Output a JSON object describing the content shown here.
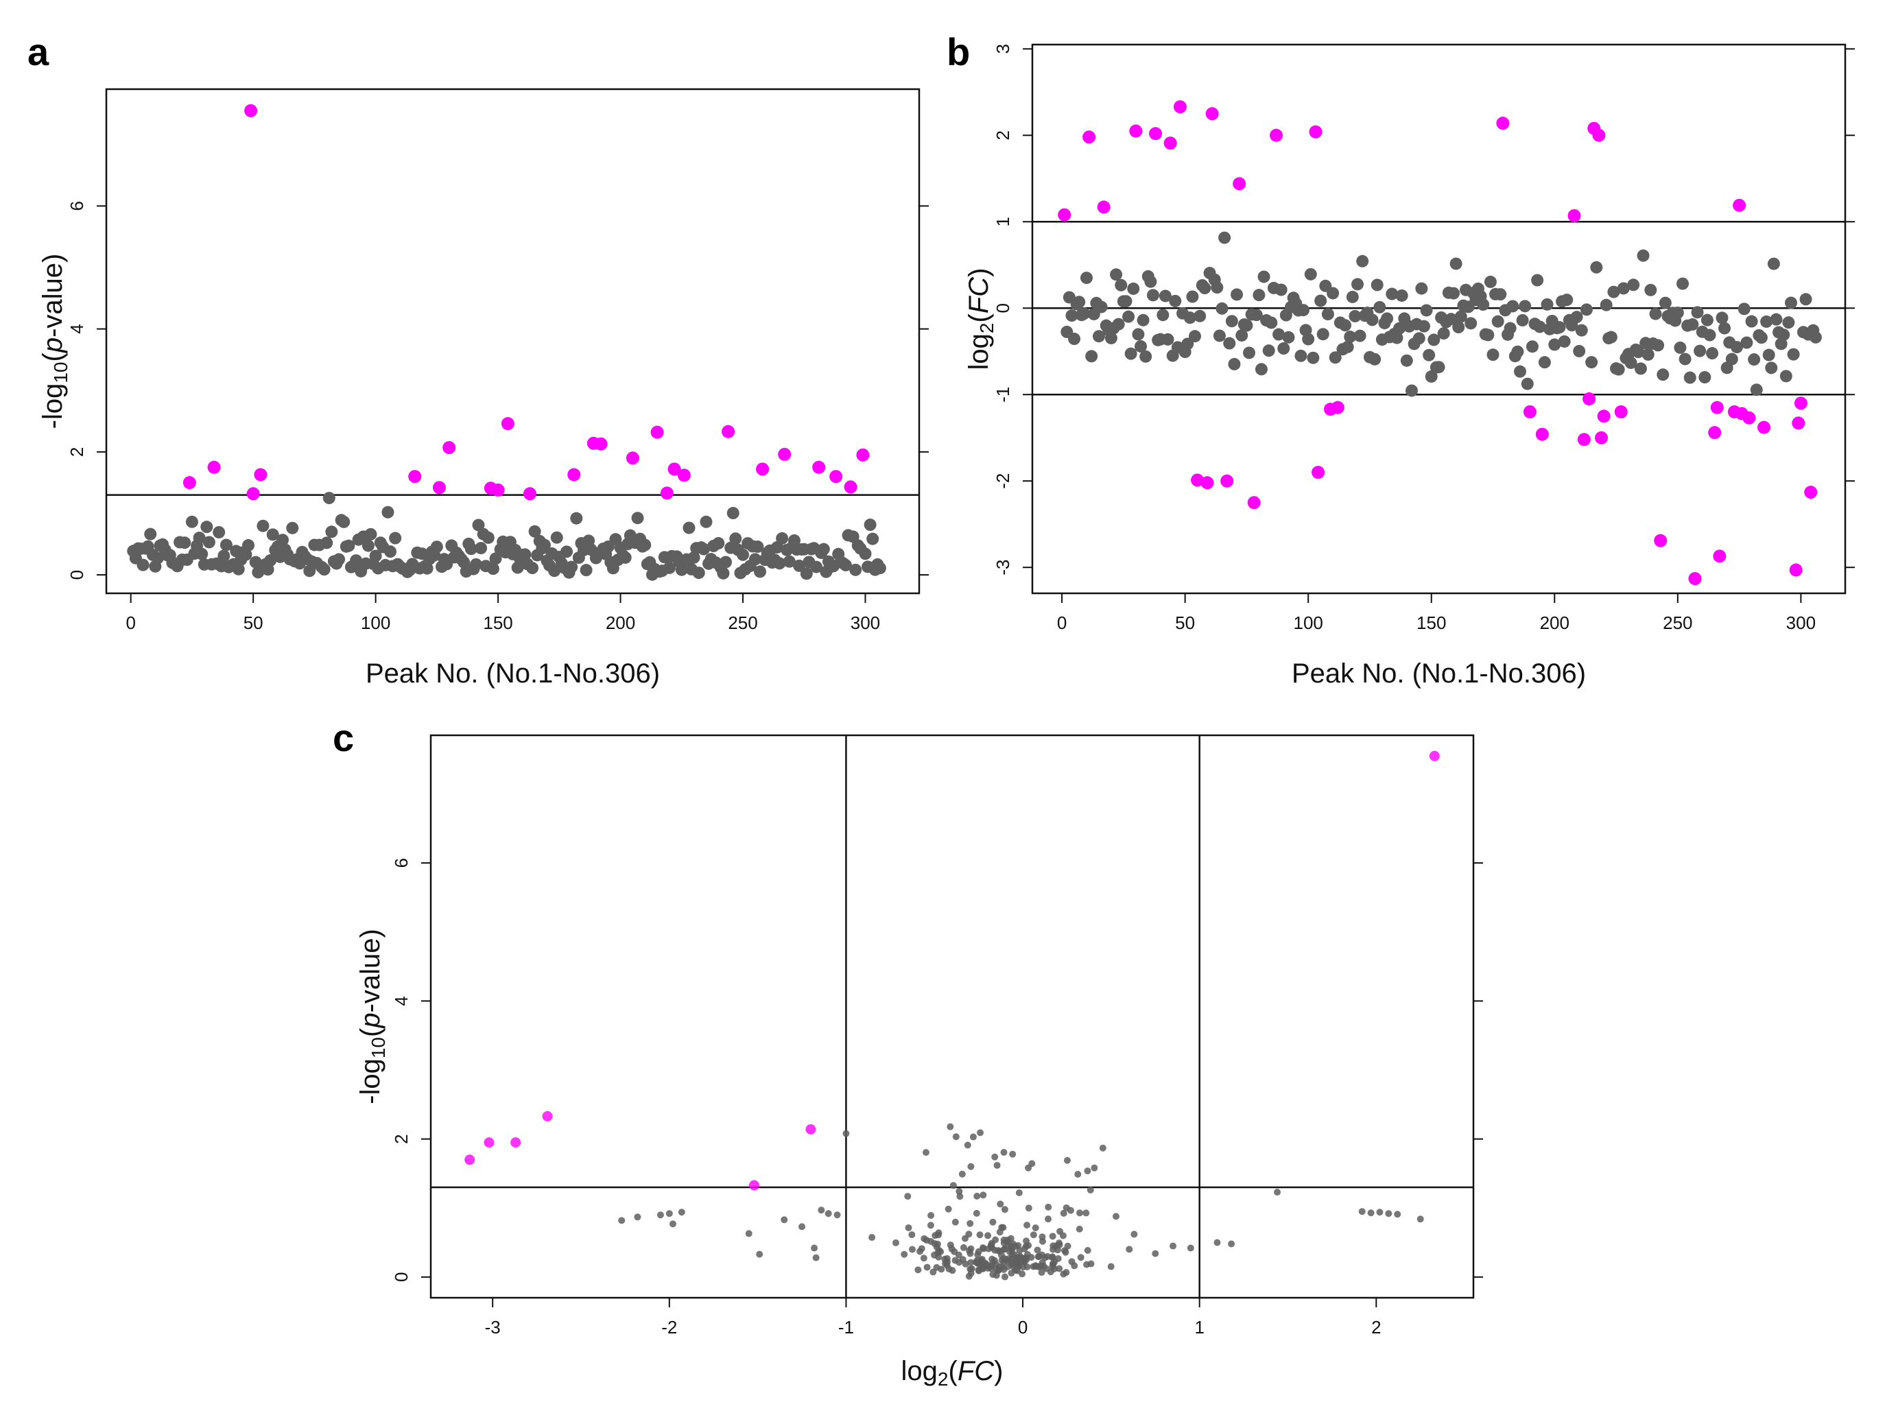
{
  "colors": {
    "significant": "#ff00ff",
    "nonsignificant": "#5f5f5f",
    "axis": "#111111"
  },
  "chart_data": [
    {
      "panel": "a",
      "type": "scatter",
      "xlabel": "Peak No. (No.1-No.306)",
      "ylabel": {
        "pre": "-log",
        "sub": "10",
        "open": "(",
        "italic": "p",
        "post": "-value)"
      },
      "xlim": [
        -10,
        322
      ],
      "ylim": [
        -0.3,
        7.9
      ],
      "xticks": [
        "0",
        "50",
        "100",
        "150",
        "200",
        "250",
        "300"
      ],
      "yticks": [
        "0",
        "2",
        "4",
        "6"
      ],
      "hline": [
        1.3
      ],
      "significant": [
        {
          "x": 24,
          "y": 1.5
        },
        {
          "x": 34,
          "y": 1.75
        },
        {
          "x": 49,
          "y": 7.55
        },
        {
          "x": 50,
          "y": 1.32
        },
        {
          "x": 53,
          "y": 1.63
        },
        {
          "x": 116,
          "y": 1.6
        },
        {
          "x": 126,
          "y": 1.42
        },
        {
          "x": 130,
          "y": 2.07
        },
        {
          "x": 147,
          "y": 1.41
        },
        {
          "x": 150,
          "y": 1.38
        },
        {
          "x": 154,
          "y": 2.46
        },
        {
          "x": 163,
          "y": 1.32
        },
        {
          "x": 181,
          "y": 1.63
        },
        {
          "x": 189,
          "y": 2.14
        },
        {
          "x": 192,
          "y": 2.13
        },
        {
          "x": 205,
          "y": 1.9
        },
        {
          "x": 215,
          "y": 2.32
        },
        {
          "x": 219,
          "y": 1.33
        },
        {
          "x": 222,
          "y": 1.72
        },
        {
          "x": 226,
          "y": 1.62
        },
        {
          "x": 244,
          "y": 2.33
        },
        {
          "x": 258,
          "y": 1.72
        },
        {
          "x": 267,
          "y": 1.96
        },
        {
          "x": 281,
          "y": 1.75
        },
        {
          "x": 288,
          "y": 1.6
        },
        {
          "x": 294,
          "y": 1.43
        },
        {
          "x": 299,
          "y": 1.95
        }
      ]
    },
    {
      "panel": "b",
      "type": "scatter",
      "xlabel": "Peak No. (No.1-No.306)",
      "ylabel": {
        "pre": "log",
        "sub": "2",
        "open": "(",
        "italic": "FC",
        "post": ")"
      },
      "xlim": [
        -12,
        318
      ],
      "ylim": [
        -3.3,
        3.05
      ],
      "xticks": [
        "0",
        "50",
        "100",
        "150",
        "200",
        "250",
        "300"
      ],
      "yticks": [
        "-3",
        "-2",
        "-1",
        "0",
        "1",
        "2",
        "3"
      ],
      "hline": [
        1,
        0,
        -1
      ],
      "significant": [
        {
          "x": 1,
          "y": 1.08
        },
        {
          "x": 11,
          "y": 1.98
        },
        {
          "x": 17,
          "y": 1.17
        },
        {
          "x": 30,
          "y": 2.05
        },
        {
          "x": 38,
          "y": 2.02
        },
        {
          "x": 44,
          "y": 1.91
        },
        {
          "x": 48,
          "y": 2.33
        },
        {
          "x": 55,
          "y": -1.99
        },
        {
          "x": 59,
          "y": -2.02
        },
        {
          "x": 61,
          "y": 2.25
        },
        {
          "x": 67,
          "y": -2.0
        },
        {
          "x": 72,
          "y": 1.44
        },
        {
          "x": 78,
          "y": -2.25
        },
        {
          "x": 87,
          "y": 2.0
        },
        {
          "x": 103,
          "y": 2.04
        },
        {
          "x": 104,
          "y": -1.9
        },
        {
          "x": 109,
          "y": -1.17
        },
        {
          "x": 112,
          "y": -1.15
        },
        {
          "x": 179,
          "y": 2.14
        },
        {
          "x": 190,
          "y": -1.2
        },
        {
          "x": 195,
          "y": -1.46
        },
        {
          "x": 208,
          "y": 1.07
        },
        {
          "x": 212,
          "y": -1.52
        },
        {
          "x": 214,
          "y": -1.05
        },
        {
          "x": 216,
          "y": 2.08
        },
        {
          "x": 218,
          "y": 2.0
        },
        {
          "x": 219,
          "y": -1.5
        },
        {
          "x": 220,
          "y": -1.25
        },
        {
          "x": 227,
          "y": -1.2
        },
        {
          "x": 243,
          "y": -2.69
        },
        {
          "x": 257,
          "y": -3.13
        },
        {
          "x": 265,
          "y": -1.44
        },
        {
          "x": 266,
          "y": -1.15
        },
        {
          "x": 267,
          "y": -2.87
        },
        {
          "x": 273,
          "y": -1.2
        },
        {
          "x": 275,
          "y": 1.19
        },
        {
          "x": 276,
          "y": -1.22
        },
        {
          "x": 279,
          "y": -1.27
        },
        {
          "x": 285,
          "y": -1.38
        },
        {
          "x": 298,
          "y": -3.03
        },
        {
          "x": 299,
          "y": -1.33
        },
        {
          "x": 300,
          "y": -1.1
        },
        {
          "x": 304,
          "y": -2.13
        }
      ]
    },
    {
      "panel": "c",
      "type": "scatter",
      "xlabel": {
        "pre": "log",
        "sub": "2",
        "open": "(",
        "italic": "FC",
        "post": ")"
      },
      "ylabel": {
        "pre": "-log",
        "sub": "10",
        "open": "(",
        "italic": "p",
        "post": "-value)"
      },
      "xlim": [
        -3.35,
        2.55
      ],
      "ylim": [
        -0.3,
        7.85
      ],
      "xticks": [
        "-3",
        "-2",
        "-1",
        "0",
        "1",
        "2"
      ],
      "yticks": [
        "0",
        "2",
        "4",
        "6"
      ],
      "hline": [
        1.3
      ],
      "vline": [
        -1,
        1
      ],
      "significant": [
        {
          "x": -3.13,
          "y": 1.7
        },
        {
          "x": -3.02,
          "y": 1.95
        },
        {
          "x": -2.87,
          "y": 1.95
        },
        {
          "x": -2.69,
          "y": 2.33
        },
        {
          "x": -1.52,
          "y": 1.33
        },
        {
          "x": -1.2,
          "y": 2.14
        },
        {
          "x": 2.33,
          "y": 7.55
        }
      ]
    }
  ]
}
